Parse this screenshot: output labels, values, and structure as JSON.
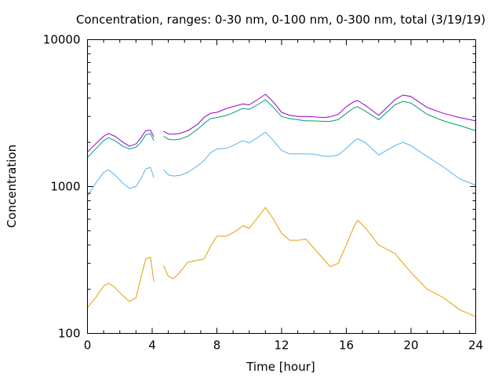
{
  "chart_data": {
    "type": "line",
    "title": "Concentration, ranges: 0-30 nm, 0-100 nm, 0-300 nm, total (3/19/19)",
    "xlabel": "Time [hour]",
    "ylabel": "Concentration",
    "xlim": [
      0,
      24
    ],
    "ylim": [
      100,
      10000
    ],
    "yscale": "log",
    "x_ticks": [
      "0",
      "4",
      "8",
      "12",
      "16",
      "20",
      "24"
    ],
    "x_tick_values": [
      0,
      4,
      8,
      12,
      16,
      20,
      24
    ],
    "y_ticks": [
      "100",
      "1000",
      "10000"
    ],
    "y_tick_values": [
      100,
      1000,
      10000
    ],
    "grid": false,
    "colors": [
      "#e69f00",
      "#56b4e9",
      "#009e73",
      "#9400d3"
    ],
    "series": [
      {
        "color": "#e69f00",
        "segments": [
          {
            "x": [
              0,
              0.5,
              1.0,
              1.3,
              1.7,
              2.2,
              2.6,
              3.0,
              3.3,
              3.6,
              3.9,
              4.1
            ],
            "y": [
              150,
              175,
              210,
              220,
              205,
              180,
              165,
              175,
              240,
              320,
              330,
              225
            ]
          },
          {
            "x": [
              4.7,
              5.0,
              5.3,
              5.7,
              6.2,
              6.8,
              7.2,
              7.6,
              8.0,
              8.6,
              9.2,
              9.6,
              10.0,
              10.5,
              11.0,
              11.5,
              12.0,
              12.5,
              13.0,
              13.5,
              14.0,
              14.6,
              15.0,
              15.5,
              16.0,
              16.5,
              16.7,
              17.2,
              18.0,
              19.0,
              20.0,
              21.0,
              22.0,
              23.0,
              24.0
            ],
            "y": [
              290,
              245,
              235,
              260,
              305,
              315,
              320,
              390,
              460,
              460,
              500,
              540,
              520,
              610,
              720,
              600,
              480,
              430,
              430,
              440,
              380,
              320,
              285,
              300,
              400,
              540,
              590,
              520,
              400,
              350,
              260,
              200,
              175,
              145,
              130
            ]
          }
        ]
      },
      {
        "color": "#56b4e9",
        "segments": [
          {
            "x": [
              0,
              0.5,
              1.0,
              1.3,
              1.7,
              2.2,
              2.6,
              3.0,
              3.3,
              3.6,
              3.9,
              4.1
            ],
            "y": [
              860,
              1050,
              1250,
              1300,
              1200,
              1050,
              970,
              1000,
              1130,
              1320,
              1350,
              1150
            ]
          },
          {
            "x": [
              4.7,
              5.0,
              5.3,
              5.7,
              6.2,
              6.8,
              7.2,
              7.6,
              8.0,
              8.6,
              9.2,
              9.6,
              10.0,
              10.5,
              11.0,
              11.5,
              12.0,
              12.5,
              13.0,
              13.5,
              14.0,
              14.6,
              15.0,
              15.5,
              16.0,
              16.5,
              16.7,
              17.2,
              18.0,
              19.0,
              19.5,
              20.0,
              21.0,
              22.0,
              23.0,
              24.0
            ],
            "y": [
              1300,
              1200,
              1180,
              1190,
              1250,
              1380,
              1500,
              1700,
              1800,
              1820,
              1950,
              2050,
              1980,
              2150,
              2350,
              2050,
              1760,
              1670,
              1670,
              1670,
              1660,
              1610,
              1600,
              1640,
              1820,
              2050,
              2120,
              1980,
              1640,
              1900,
              2000,
              1900,
              1600,
              1360,
              1130,
              1020
            ]
          }
        ]
      },
      {
        "color": "#009e73",
        "segments": [
          {
            "x": [
              0,
              0.5,
              1.0,
              1.3,
              1.7,
              2.2,
              2.6,
              3.0,
              3.3,
              3.6,
              3.9,
              4.1
            ],
            "y": [
              1580,
              1800,
              2050,
              2150,
              2050,
              1880,
              1800,
              1850,
              2000,
              2250,
              2300,
              2050
            ]
          },
          {
            "x": [
              4.7,
              5.0,
              5.3,
              5.7,
              6.2,
              6.8,
              7.2,
              7.6,
              8.0,
              8.6,
              9.2,
              9.6,
              10.0,
              10.5,
              11.0,
              11.5,
              12.0,
              12.5,
              13.0,
              13.5,
              14.0,
              14.6,
              15.0,
              15.5,
              16.0,
              16.5,
              16.7,
              17.2,
              18.0,
              19.0,
              19.5,
              20.0,
              21.0,
              22.0,
              23.0,
              24.0
            ],
            "y": [
              2200,
              2100,
              2080,
              2100,
              2200,
              2450,
              2680,
              2900,
              2950,
              3050,
              3250,
              3400,
              3350,
              3600,
              3900,
              3450,
              3000,
              2900,
              2850,
              2800,
              2800,
              2780,
              2780,
              2850,
              3150,
              3450,
              3500,
              3250,
              2850,
              3600,
              3800,
              3700,
              3100,
              2800,
              2600,
              2400
            ]
          }
        ]
      },
      {
        "color": "#9400d3",
        "segments": [
          {
            "x": [
              0,
              0.5,
              1.0,
              1.3,
              1.7,
              2.2,
              2.6,
              3.0,
              3.3,
              3.6,
              3.9,
              4.1
            ],
            "y": [
              1720,
              1950,
              2200,
              2300,
              2200,
              2000,
              1880,
              1950,
              2150,
              2400,
              2420,
              2180
            ]
          },
          {
            "x": [
              4.7,
              5.0,
              5.3,
              5.7,
              6.2,
              6.8,
              7.2,
              7.6,
              8.0,
              8.6,
              9.2,
              9.6,
              10.0,
              10.5,
              11.0,
              11.5,
              12.0,
              12.5,
              13.0,
              13.5,
              14.0,
              14.6,
              15.0,
              15.5,
              16.0,
              16.5,
              16.7,
              17.2,
              18.0,
              19.0,
              19.5,
              20.0,
              21.0,
              22.0,
              23.0,
              24.0
            ],
            "y": [
              2380,
              2280,
              2270,
              2300,
              2400,
              2650,
              2950,
              3150,
              3200,
              3400,
              3550,
              3650,
              3600,
              3900,
              4250,
              3750,
              3200,
              3050,
              3000,
              3000,
              2980,
              2950,
              2980,
              3100,
              3500,
              3800,
              3850,
              3550,
              3050,
              3900,
              4200,
              4100,
              3450,
              3150,
              2950,
              2800
            ]
          }
        ]
      }
    ]
  }
}
